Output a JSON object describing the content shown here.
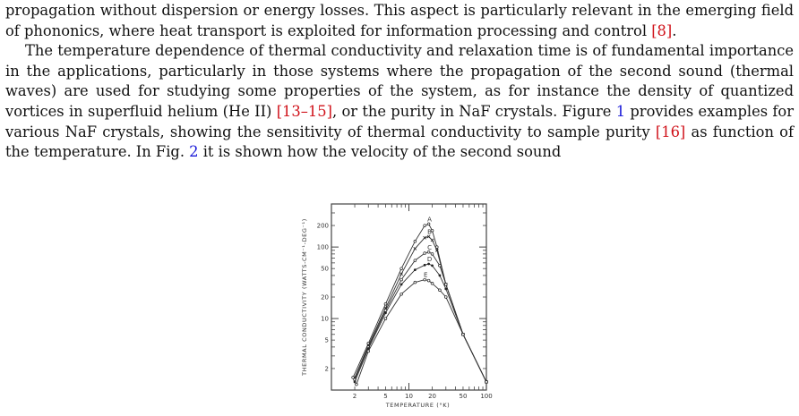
{
  "paragraph1": {
    "text_a": "propagation without dispersion or energy losses. This aspect is particularly relevant in the emerging field of phononics, where heat transport is exploited for information processing and control ",
    "ref_8": "[8]",
    "text_b": "."
  },
  "paragraph2": {
    "text_a": "The temperature dependence of thermal conductivity and relaxation time is of fundamental importance in the applications, particularly in those systems where the propagation of the second sound (thermal waves) are used for studying some properties of the system, as for instance the density of quantized vortices in superfluid helium (He II) ",
    "ref_13_15": "[13–15]",
    "text_b": ", or the purity in NaF crystals. Figure ",
    "fig1_link": "1",
    "text_c": " provides examples for various NaF crystals, showing the sensitivity of thermal conductivity to sample purity ",
    "ref_16": "[16]",
    "text_d": " as function of the temperature. In Fig. ",
    "fig2_link": "2",
    "text_e": " it is shown how the velocity of the second sound"
  },
  "chart_data": {
    "type": "line",
    "title": "",
    "xlabel": "TEMPERATURE  (°K)",
    "ylabel": "THERMAL CONDUCTIVITY  (WATTS-CM⁻¹-DEG⁻¹)",
    "xscale": "log",
    "yscale": "log",
    "xlim": [
      1,
      100
    ],
    "ylim": [
      1,
      400
    ],
    "x_ticks": [
      2,
      5,
      10,
      20,
      50,
      100
    ],
    "x_tick_labels": [
      "2",
      "5",
      "10",
      "20",
      "50",
      "100"
    ],
    "y_ticks": [
      2,
      5,
      10,
      20,
      50,
      100,
      200
    ],
    "y_tick_labels": [
      "2",
      "5",
      "10",
      "20",
      "50",
      "100",
      "200"
    ],
    "series": [
      {
        "name": "A",
        "marker": "o",
        "points": [
          [
            1.9,
            1.5
          ],
          [
            3,
            4.5
          ],
          [
            5,
            16
          ],
          [
            8,
            50
          ],
          [
            12,
            120
          ],
          [
            16,
            200
          ],
          [
            18,
            210
          ],
          [
            20,
            170
          ],
          [
            23,
            100
          ],
          [
            30,
            30
          ],
          [
            50,
            6
          ],
          [
            100,
            1.3
          ]
        ]
      },
      {
        "name": "B",
        "marker": "x",
        "points": [
          [
            2,
            1.5
          ],
          [
            3,
            4.2
          ],
          [
            5,
            14
          ],
          [
            8,
            42
          ],
          [
            12,
            95
          ],
          [
            16,
            135
          ],
          [
            18,
            140
          ],
          [
            20,
            125
          ],
          [
            23,
            90
          ],
          [
            30,
            30
          ],
          [
            50,
            6
          ],
          [
            100,
            1.3
          ]
        ]
      },
      {
        "name": "C",
        "marker": "o",
        "points": [
          [
            2,
            1.4
          ],
          [
            3,
            4
          ],
          [
            5,
            13
          ],
          [
            8,
            35
          ],
          [
            12,
            65
          ],
          [
            16,
            82
          ],
          [
            18,
            85
          ],
          [
            20,
            80
          ],
          [
            25,
            55
          ],
          [
            30,
            30
          ],
          [
            50,
            6
          ],
          [
            100,
            1.3
          ]
        ]
      },
      {
        "name": "D",
        "marker": "•",
        "points": [
          [
            2,
            1.3
          ],
          [
            3,
            3.8
          ],
          [
            5,
            12
          ],
          [
            8,
            30
          ],
          [
            12,
            48
          ],
          [
            16,
            56
          ],
          [
            18,
            58
          ],
          [
            20,
            55
          ],
          [
            25,
            40
          ],
          [
            30,
            26
          ],
          [
            50,
            6
          ],
          [
            100,
            1.3
          ]
        ]
      },
      {
        "name": "E",
        "marker": "o",
        "points": [
          [
            2.1,
            1.2
          ],
          [
            3,
            3.5
          ],
          [
            5,
            10
          ],
          [
            8,
            22
          ],
          [
            12,
            32
          ],
          [
            16,
            35
          ],
          [
            18,
            34
          ],
          [
            20,
            31
          ],
          [
            25,
            25
          ],
          [
            30,
            20
          ],
          [
            50,
            6
          ],
          [
            100,
            1.3
          ]
        ]
      }
    ],
    "grid": false,
    "legend": "curve labels A–E near peaks"
  }
}
